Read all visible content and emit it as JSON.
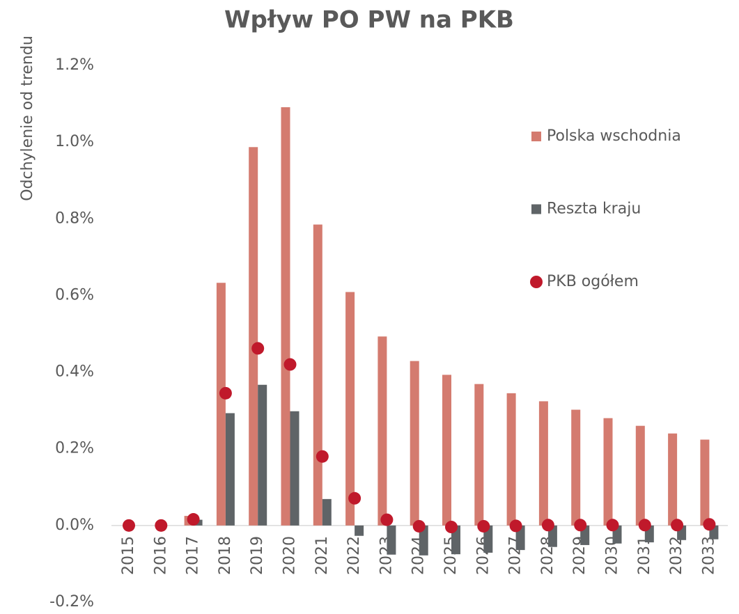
{
  "chart_data": {
    "type": "bar",
    "title": "Wpływ PO PW na PKB",
    "y_label": "Odchylenie od trendu",
    "categories": [
      "2015",
      "2016",
      "2017",
      "2018",
      "2019",
      "2020",
      "2021",
      "2022",
      "2023",
      "2024",
      "2025",
      "2026",
      "2027",
      "2028",
      "2029",
      "2030",
      "2031",
      "2032",
      "2033"
    ],
    "series": [
      {
        "name": "Polska wschodnia",
        "color": "#d47b6f",
        "type": "bar",
        "values": [
          0,
          0,
          0.025,
          0.633,
          0.987,
          1.091,
          0.785,
          0.609,
          0.493,
          0.429,
          0.393,
          0.369,
          0.345,
          0.324,
          0.302,
          0.28,
          0.26,
          0.24,
          0.224
        ]
      },
      {
        "name": "Reszta kraju",
        "color": "#5f6467",
        "type": "bar",
        "values": [
          0,
          0,
          0.015,
          0.293,
          0.367,
          0.298,
          0.069,
          -0.027,
          -0.076,
          -0.078,
          -0.075,
          -0.071,
          -0.064,
          -0.056,
          -0.051,
          -0.047,
          -0.044,
          -0.038,
          -0.036
        ]
      },
      {
        "name": "PKB ogółem",
        "color": "#c0192b",
        "type": "scatter",
        "values": [
          0,
          0,
          0.016,
          0.345,
          0.462,
          0.42,
          0.18,
          0.071,
          0.015,
          -0.002,
          -0.004,
          -0.002,
          -0.001,
          0.001,
          0.001,
          0.001,
          0.001,
          0.001,
          0.003
        ]
      }
    ],
    "ylim": [
      -0.2,
      1.2
    ],
    "yticks": [
      {
        "value": -0.2,
        "label": "-0.2%"
      },
      {
        "value": 0,
        "label": "0.0%"
      },
      {
        "value": 0.2,
        "label": "0.2%"
      },
      {
        "value": 0.4,
        "label": "0.4%"
      },
      {
        "value": 0.6,
        "label": "0.6%"
      },
      {
        "value": 0.8,
        "label": "0.8%"
      },
      {
        "value": 1.0,
        "label": "1.0%"
      },
      {
        "value": 1.2,
        "label": "1.2%"
      }
    ],
    "grid": false,
    "legend": "right"
  }
}
